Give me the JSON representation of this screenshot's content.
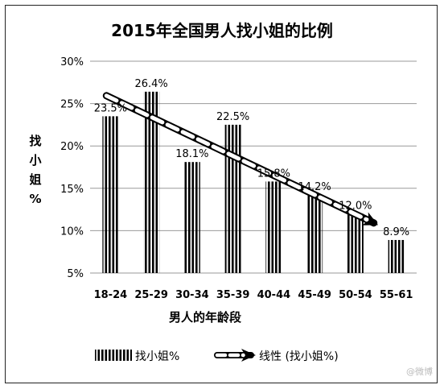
{
  "chart_data": {
    "type": "bar",
    "title": "2015年全国男人找小姐的比例",
    "xlabel": "男人人的年龄段",
    "ylabel": "找小姐%",
    "categories": [
      "18-24",
      "25-29",
      "30-34",
      "35-39",
      "40-44",
      "45-49",
      "50-54",
      "55-61"
    ],
    "series": [
      {
        "name": "找小姐%",
        "values": [
          23.5,
          26.4,
          18.1,
          22.5,
          15.8,
          14.2,
          12.0,
          8.9
        ],
        "labels": [
          "23.5%",
          "26.4%",
          "18.1%",
          "22.5%",
          "15.8%",
          "14.2%",
          "12.0%",
          "8.9%"
        ]
      }
    ],
    "trendline": {
      "name": "线性 (找小姐%)",
      "type": "linear"
    },
    "yticks": [
      "5%",
      "10%",
      "15%",
      "20%",
      "25%",
      "30%"
    ],
    "ylim": [
      5,
      30
    ],
    "grid": true,
    "legend": "bottom"
  },
  "ylabel_chars": [
    "找",
    "小",
    "姐",
    "%"
  ],
  "xlabel_display": "男人的年龄段",
  "watermark": "@微博"
}
